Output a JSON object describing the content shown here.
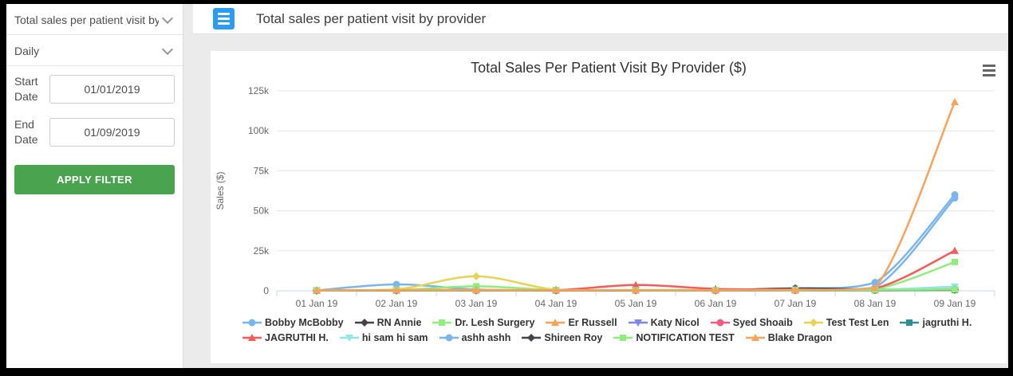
{
  "sidebar": {
    "report_select": {
      "value": "Total sales per patient visit by ...",
      "icon": "chevron-down"
    },
    "frequency_select": {
      "value": "Daily",
      "icon": "chevron-down"
    },
    "start_date": {
      "label": "Start Date",
      "value": "01/01/2019"
    },
    "end_date": {
      "label": "End Date",
      "value": "01/09/2019"
    },
    "apply_button": {
      "label": "APPLY FILTER",
      "color": "#4aa34e"
    }
  },
  "header": {
    "title": "Total sales per patient visit by provider",
    "menu_icon": "hamburger",
    "menu_color": "#2b9cf2"
  },
  "chart_data": {
    "type": "line",
    "title": "Total Sales Per Patient Visit By Provider ($)",
    "xlabel": "",
    "ylabel": "Sales ($)",
    "ylim": [
      0,
      125000
    ],
    "grid": true,
    "legend_position": "bottom",
    "context_menu_icon": "hamburger",
    "yticks": [
      {
        "value": 0,
        "label": "0"
      },
      {
        "value": 25000,
        "label": "25k"
      },
      {
        "value": 50000,
        "label": "50k"
      },
      {
        "value": 75000,
        "label": "75k"
      },
      {
        "value": 100000,
        "label": "100k"
      },
      {
        "value": 125000,
        "label": "125k"
      }
    ],
    "categories": [
      "01 Jan 19",
      "02 Jan 19",
      "03 Jan 19",
      "04 Jan 19",
      "05 Jan 19",
      "06 Jan 19",
      "07 Jan 19",
      "08 Jan 19",
      "09 Jan 19"
    ],
    "series": [
      {
        "name": "Bobby McBobby",
        "color": "#7cb5ec",
        "marker": "circle",
        "values": [
          200,
          4000,
          800,
          300,
          400,
          300,
          1500,
          5200,
          60000
        ]
      },
      {
        "name": "RN Annie",
        "color": "#434348",
        "marker": "diamond",
        "values": [
          100,
          200,
          250,
          200,
          300,
          350,
          1500,
          800,
          1000
        ]
      },
      {
        "name": "Dr. Lesh Surgery",
        "color": "#90ed7d",
        "marker": "square",
        "values": [
          300,
          400,
          2800,
          400,
          500,
          400,
          600,
          1000,
          18000
        ]
      },
      {
        "name": "Er Russell",
        "color": "#f7a35c",
        "marker": "triangle",
        "values": [
          300,
          400,
          500,
          300,
          350,
          300,
          450,
          700,
          900
        ]
      },
      {
        "name": "Katy Nicol",
        "color": "#8085e9",
        "marker": "triangle-down",
        "values": [
          100,
          150,
          200,
          150,
          200,
          150,
          250,
          300,
          400
        ]
      },
      {
        "name": "Syed Shoaib",
        "color": "#f15c80",
        "marker": "circle",
        "values": [
          150,
          200,
          250,
          200,
          250,
          200,
          300,
          400,
          500
        ]
      },
      {
        "name": "Test Test Len",
        "color": "#e4d354",
        "marker": "diamond",
        "values": [
          100,
          800,
          9000,
          600,
          150,
          100,
          200,
          300,
          400
        ]
      },
      {
        "name": "jagruthi H.",
        "color": "#2b908f",
        "marker": "square",
        "values": [
          100,
          150,
          200,
          150,
          200,
          150,
          250,
          350,
          450
        ]
      },
      {
        "name": "JAGRUTHI H.",
        "color": "#f45b5b",
        "marker": "triangle",
        "values": [
          200,
          300,
          500,
          400,
          3600,
          1200,
          800,
          1500,
          25000
        ]
      },
      {
        "name": "hi sam hi sam",
        "color": "#91e8e1",
        "marker": "triangle-down",
        "values": [
          100,
          150,
          200,
          150,
          200,
          150,
          300,
          600,
          2600
        ]
      },
      {
        "name": "ashh ashh",
        "color": "#7cb5ec",
        "marker": "circle",
        "values": [
          150,
          250,
          350,
          250,
          300,
          250,
          400,
          2000,
          58000
        ]
      },
      {
        "name": "Shireen Roy",
        "color": "#434348",
        "marker": "diamond",
        "values": [
          100,
          150,
          200,
          150,
          250,
          200,
          350,
          500,
          700
        ]
      },
      {
        "name": "NOTIFICATION TEST",
        "color": "#90ed7d",
        "marker": "square",
        "values": [
          200,
          250,
          300,
          250,
          300,
          250,
          400,
          600,
          800
        ]
      },
      {
        "name": "Blake Dragon",
        "color": "#f7a35c",
        "marker": "triangle",
        "values": [
          300,
          400,
          500,
          350,
          400,
          350,
          600,
          1800,
          118000
        ]
      }
    ]
  }
}
